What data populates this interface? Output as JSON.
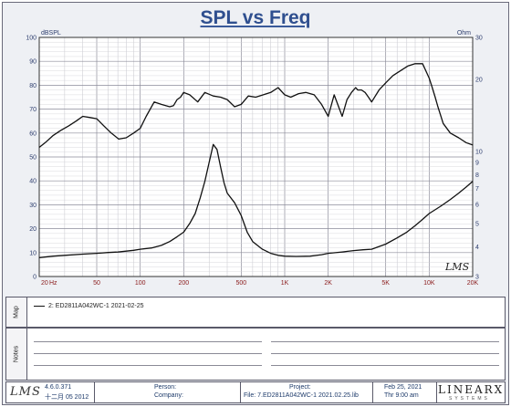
{
  "title": "SPL vs Freq",
  "chart_data": {
    "type": "line",
    "title": "SPL vs Freq",
    "x_scale": "log",
    "xlim": [
      20,
      20000
    ],
    "x_ticks": [
      {
        "v": 20,
        "l": "20"
      },
      {
        "v": 50,
        "l": "50"
      },
      {
        "v": 100,
        "l": "100"
      },
      {
        "v": 200,
        "l": "200"
      },
      {
        "v": 500,
        "l": "500"
      },
      {
        "v": 1000,
        "l": "1K"
      },
      {
        "v": 2000,
        "l": "2K"
      },
      {
        "v": 5000,
        "l": "5K"
      },
      {
        "v": 10000,
        "l": "10K"
      },
      {
        "v": 20000,
        "l": "20K"
      }
    ],
    "x_unit": "Hz",
    "ylabel_left": "dBSPL",
    "ylim_left": [
      0,
      100
    ],
    "y_ticks_left": [
      0,
      10,
      20,
      30,
      40,
      50,
      60,
      70,
      80,
      90,
      100
    ],
    "ylabel_right": "Ohm",
    "ylim_right": [
      3,
      30
    ],
    "y_ticks_right": [
      3,
      4,
      5,
      6,
      7,
      8,
      9,
      10,
      20,
      30
    ],
    "grid": true,
    "series": [
      {
        "axis": "left",
        "x": [
          20,
          22,
          25,
          28,
          32,
          36,
          40,
          45,
          50,
          56,
          63,
          71,
          80,
          90,
          100,
          110,
          125,
          140,
          160,
          170,
          180,
          190,
          200,
          220,
          250,
          280,
          320,
          360,
          400,
          450,
          500,
          560,
          630,
          710,
          800,
          900,
          1000,
          1100,
          1250,
          1400,
          1600,
          1800,
          2000,
          2200,
          2500,
          2700,
          2900,
          3000,
          3100,
          3200,
          3400,
          3600,
          3800,
          4000,
          4500,
          5000,
          5600,
          6300,
          7100,
          8000,
          9000,
          10000,
          10500,
          11000,
          11500,
          12500,
          14000,
          16000,
          18000,
          20000
        ],
        "values": [
          54,
          56,
          59,
          61,
          63,
          65,
          67,
          66.5,
          66,
          63,
          60,
          57.5,
          58,
          60,
          62,
          67,
          73,
          72,
          71,
          71.5,
          74,
          75,
          77,
          76,
          73,
          77,
          75.5,
          75,
          74,
          71,
          72,
          75.5,
          75,
          76,
          77,
          79,
          76,
          75,
          76.5,
          77,
          76,
          72,
          67,
          76,
          67,
          74,
          77,
          78,
          79,
          78,
          78,
          77,
          75,
          73,
          78,
          81,
          84,
          86,
          88,
          89,
          89,
          83,
          79,
          75,
          71,
          64,
          60,
          58,
          56,
          55
        ]
      },
      {
        "axis": "right",
        "x": [
          20,
          25,
          30,
          40,
          50,
          60,
          70,
          80,
          90,
          100,
          120,
          140,
          160,
          180,
          200,
          220,
          240,
          260,
          280,
          300,
          320,
          340,
          360,
          380,
          400,
          450,
          500,
          550,
          600,
          700,
          800,
          900,
          1000,
          1200,
          1500,
          1800,
          2000,
          2500,
          3000,
          3500,
          4000,
          5000,
          6000,
          7000,
          8000,
          9000,
          10000,
          12000,
          14000,
          16000,
          18000,
          20000
        ],
        "values": [
          3.6,
          3.65,
          3.68,
          3.72,
          3.75,
          3.78,
          3.8,
          3.83,
          3.86,
          3.9,
          3.95,
          4.05,
          4.2,
          4.4,
          4.6,
          5.0,
          5.5,
          6.4,
          7.5,
          9.0,
          10.7,
          10.2,
          8.6,
          7.4,
          6.7,
          6.1,
          5.4,
          4.6,
          4.2,
          3.9,
          3.75,
          3.68,
          3.65,
          3.64,
          3.65,
          3.7,
          3.75,
          3.8,
          3.85,
          3.88,
          3.9,
          4.1,
          4.35,
          4.6,
          4.9,
          5.2,
          5.5,
          5.9,
          6.3,
          6.7,
          7.1,
          7.5
        ]
      }
    ]
  },
  "map_panel": {
    "label": "Map",
    "entry": "2: ED2811A042WC-1 2021-02-25"
  },
  "notes_panel": {
    "label": "Notes"
  },
  "graph_logo": "LMS",
  "footer": {
    "logo": "LMS",
    "version": "4.6.0.371",
    "version_date": "十二月 05 2012",
    "person_label": "Person:",
    "company_label": "Company:",
    "project_label": "Project:",
    "file_label": "File: 7.ED2811A042WC-1 2021.02.25.lib",
    "date": "Feb 25, 2021",
    "time": "Thr  9:00 am",
    "brand": "LINEARX",
    "brand_sub": "SYSTEMS"
  }
}
